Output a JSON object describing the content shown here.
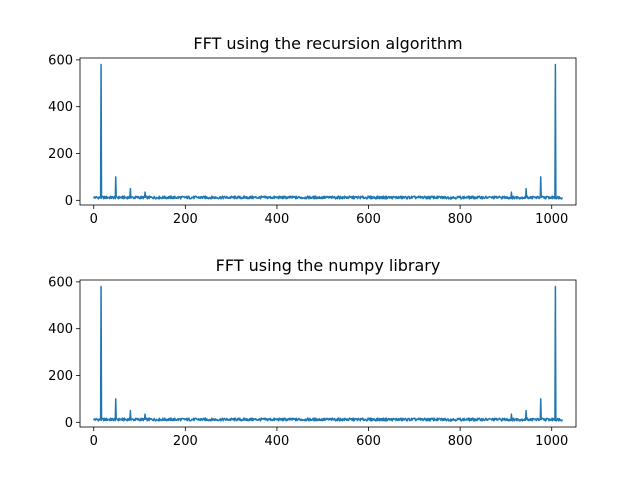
{
  "figure": {
    "background": "#ffffff",
    "series_color": "#1f77b4"
  },
  "chart_data": [
    {
      "type": "line",
      "title": "FFT using the recursion algorithm",
      "xlabel": "",
      "ylabel": "",
      "xlim": [
        -30,
        1053
      ],
      "ylim": [
        -20,
        608
      ],
      "xticks": [
        0,
        200,
        400,
        600,
        800,
        1000
      ],
      "yticks": [
        0,
        200,
        400,
        600
      ],
      "grid": false,
      "n_points": 1024,
      "baseline": 12,
      "peaks": [
        {
          "x": 16,
          "y": 580
        },
        {
          "x": 48,
          "y": 100
        },
        {
          "x": 80,
          "y": 50
        },
        {
          "x": 112,
          "y": 35
        },
        {
          "x": 912,
          "y": 35
        },
        {
          "x": 944,
          "y": 50
        },
        {
          "x": 976,
          "y": 100
        },
        {
          "x": 1008,
          "y": 580
        }
      ]
    },
    {
      "type": "line",
      "title": "FFT using the numpy library",
      "xlabel": "",
      "ylabel": "",
      "xlim": [
        -30,
        1053
      ],
      "ylim": [
        -20,
        608
      ],
      "xticks": [
        0,
        200,
        400,
        600,
        800,
        1000
      ],
      "yticks": [
        0,
        200,
        400,
        600
      ],
      "grid": false,
      "n_points": 1024,
      "baseline": 12,
      "peaks": [
        {
          "x": 16,
          "y": 580
        },
        {
          "x": 48,
          "y": 100
        },
        {
          "x": 80,
          "y": 50
        },
        {
          "x": 112,
          "y": 35
        },
        {
          "x": 912,
          "y": 35
        },
        {
          "x": 944,
          "y": 50
        },
        {
          "x": 976,
          "y": 100
        },
        {
          "x": 1008,
          "y": 580
        }
      ]
    }
  ]
}
